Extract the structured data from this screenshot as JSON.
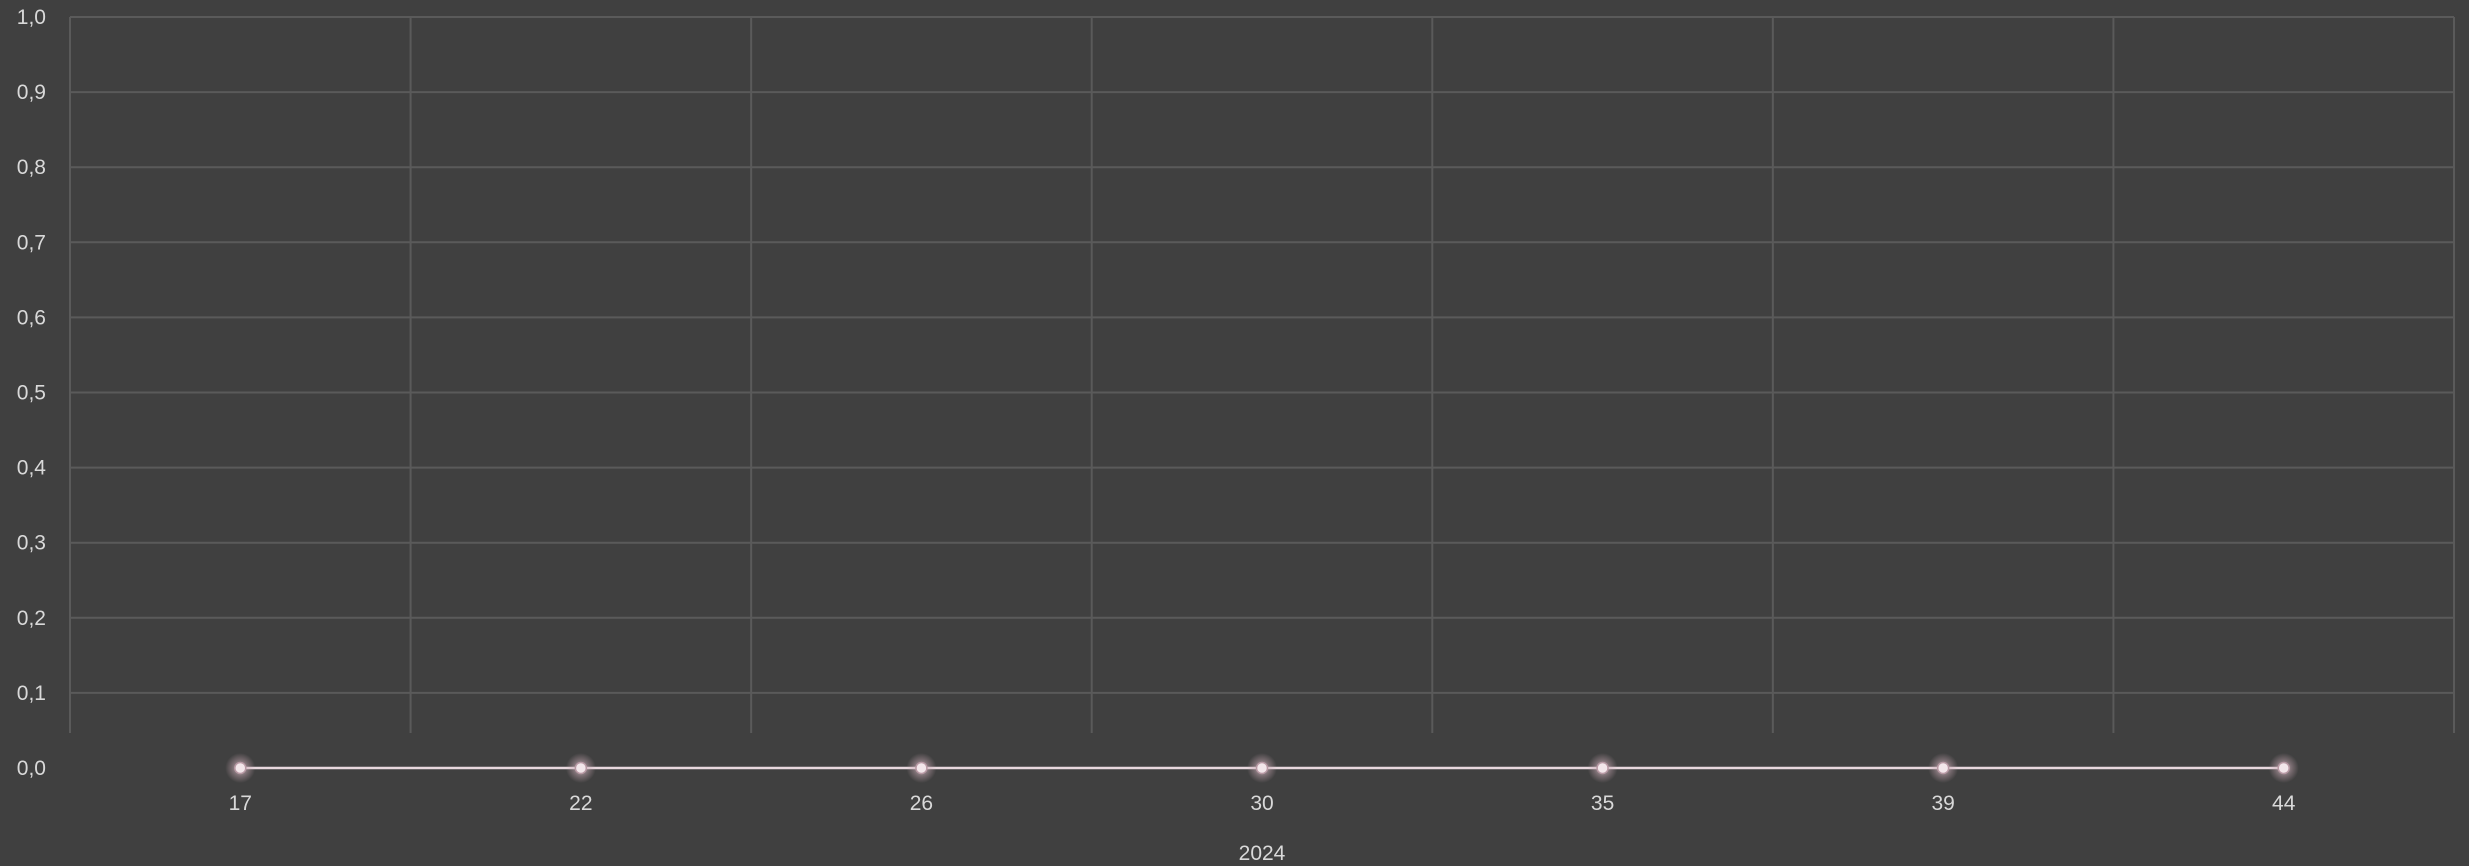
{
  "chart_data": {
    "type": "line",
    "title": "",
    "xlabel": "2024",
    "ylabel": "",
    "categories": [
      "17",
      "22",
      "26",
      "30",
      "35",
      "39",
      "44"
    ],
    "series": [
      {
        "values": [
          0,
          0,
          0,
          0,
          0,
          0,
          0
        ]
      }
    ],
    "ylim": [
      0,
      1
    ],
    "y_ticks": [
      "0,0",
      "0,1",
      "0,2",
      "0,3",
      "0,4",
      "0,5",
      "0,6",
      "0,7",
      "0,8",
      "0,9",
      "1,0"
    ],
    "grid": true,
    "legend": "none",
    "colors": {
      "background": "#404040",
      "gridline": "#5a5a5a",
      "series_line": "#e8d8de",
      "marker_glow": "#c9a9b4",
      "text": "#d9d9d9"
    }
  }
}
